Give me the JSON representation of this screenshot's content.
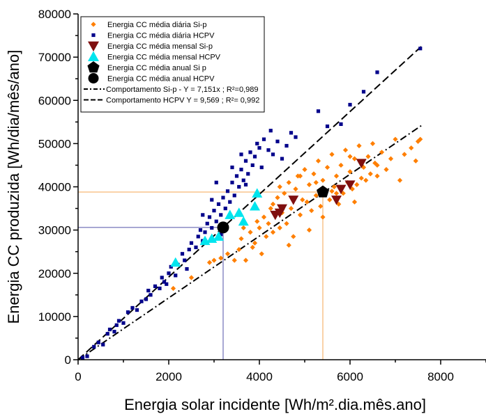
{
  "chart_data": {
    "type": "scatter",
    "xlabel": "Energia solar incidente [Wh/m².dia.mês.ano]",
    "ylabel": "Energia CC produzida [Wh/dia/mês/ano]",
    "xlim": [
      0,
      9000
    ],
    "ylim": [
      0,
      80000
    ],
    "xticks": [
      "0",
      "2000",
      "4000",
      "6000",
      "8000"
    ],
    "yticks": [
      "0",
      "10000",
      "20000",
      "30000",
      "40000",
      "50000",
      "60000",
      "70000",
      "80000"
    ],
    "legend_position": "top-left",
    "grid": false,
    "colors": {
      "sip_daily": "#ff7f00",
      "hcpv_daily": "#00008b",
      "sip_monthly": "#7f0f0f",
      "hcpv_monthly": "#00e5ee",
      "annual": "#000000",
      "ref_sip": "#f5a650",
      "ref_hcpv": "#5050a8"
    },
    "series": [
      {
        "name": "Energia CC média diária Si-p",
        "marker": "diamond",
        "points": [
          [
            2100,
            16500
          ],
          [
            2500,
            19000
          ],
          [
            2900,
            22500
          ],
          [
            3000,
            23000
          ],
          [
            3150,
            23500
          ],
          [
            3300,
            24500
          ],
          [
            3450,
            23000
          ],
          [
            3550,
            25500
          ],
          [
            3600,
            28000
          ],
          [
            3650,
            30500
          ],
          [
            3700,
            23000
          ],
          [
            3800,
            29500
          ],
          [
            3900,
            27000
          ],
          [
            3950,
            32000
          ],
          [
            4000,
            30500
          ],
          [
            4050,
            24500
          ],
          [
            4100,
            33000
          ],
          [
            4150,
            28500
          ],
          [
            4200,
            31500
          ],
          [
            4250,
            35000
          ],
          [
            4300,
            29500
          ],
          [
            4350,
            33500
          ],
          [
            4400,
            37500
          ],
          [
            4450,
            30500
          ],
          [
            4500,
            34000
          ],
          [
            4550,
            38500
          ],
          [
            4600,
            31500
          ],
          [
            4650,
            41000
          ],
          [
            4700,
            35000
          ],
          [
            4750,
            28500
          ],
          [
            4800,
            39500
          ],
          [
            4850,
            42500
          ],
          [
            4900,
            33500
          ],
          [
            4950,
            37000
          ],
          [
            5000,
            44000
          ],
          [
            5050,
            36500
          ],
          [
            5100,
            40500
          ],
          [
            5150,
            34500
          ],
          [
            5200,
            43000
          ],
          [
            5250,
            38000
          ],
          [
            5300,
            46000
          ],
          [
            5350,
            35500
          ],
          [
            5400,
            41500
          ],
          [
            5450,
            39000
          ],
          [
            5500,
            44500
          ],
          [
            5550,
            37000
          ],
          [
            5600,
            47500
          ],
          [
            5650,
            40000
          ],
          [
            5700,
            42500
          ],
          [
            5750,
            36000
          ],
          [
            5800,
            45000
          ],
          [
            5850,
            38500
          ],
          [
            5900,
            48500
          ],
          [
            5950,
            41000
          ],
          [
            6000,
            43500
          ],
          [
            6050,
            39500
          ],
          [
            6100,
            46500
          ],
          [
            6150,
            40500
          ],
          [
            6200,
            49500
          ],
          [
            6250,
            42000
          ],
          [
            6300,
            44500
          ],
          [
            6350,
            41500
          ],
          [
            6400,
            47000
          ],
          [
            6450,
            43000
          ],
          [
            6500,
            50000
          ],
          [
            6550,
            45500
          ],
          [
            6600,
            42500
          ],
          [
            6700,
            48000
          ],
          [
            6800,
            44000
          ],
          [
            6900,
            46500
          ],
          [
            7000,
            51000
          ],
          [
            7100,
            41500
          ],
          [
            7200,
            47500
          ],
          [
            7350,
            49000
          ],
          [
            7450,
            46000
          ],
          [
            7500,
            50500
          ],
          [
            7550,
            51000
          ],
          [
            4650,
            26500
          ],
          [
            5100,
            30000
          ],
          [
            5400,
            33000
          ],
          [
            5700,
            38500
          ],
          [
            6100,
            36500
          ],
          [
            4300,
            36000
          ],
          [
            4900,
            42500
          ],
          [
            5600,
            39000
          ],
          [
            6000,
            47000
          ],
          [
            5250,
            41000
          ],
          [
            3850,
            26000
          ],
          [
            4450,
            40000
          ],
          [
            6600,
            45000
          ]
        ]
      },
      {
        "name": "Energia CC média diária HCPV",
        "marker": "square",
        "points": [
          [
            100,
            500
          ],
          [
            200,
            800
          ],
          [
            350,
            3000
          ],
          [
            450,
            4000
          ],
          [
            550,
            3500
          ],
          [
            650,
            6000
          ],
          [
            700,
            7000
          ],
          [
            800,
            6500
          ],
          [
            850,
            8000
          ],
          [
            900,
            9000
          ],
          [
            1000,
            8500
          ],
          [
            1100,
            11000
          ],
          [
            1200,
            12000
          ],
          [
            1300,
            11500
          ],
          [
            1400,
            13500
          ],
          [
            1500,
            14000
          ],
          [
            1550,
            16000
          ],
          [
            1600,
            15000
          ],
          [
            1700,
            17000
          ],
          [
            1800,
            16500
          ],
          [
            1850,
            19000
          ],
          [
            1900,
            18000
          ],
          [
            2000,
            20000
          ],
          [
            2050,
            21500
          ],
          [
            2150,
            19500
          ],
          [
            2200,
            22000
          ],
          [
            2300,
            24500
          ],
          [
            2350,
            23000
          ],
          [
            2450,
            25500
          ],
          [
            2500,
            27000
          ],
          [
            2600,
            26000
          ],
          [
            2650,
            28500
          ],
          [
            2700,
            30000
          ],
          [
            2750,
            27500
          ],
          [
            2800,
            29500
          ],
          [
            2850,
            31500
          ],
          [
            2900,
            33000
          ],
          [
            2950,
            30500
          ],
          [
            3000,
            34500
          ],
          [
            3050,
            32000
          ],
          [
            3100,
            36000
          ],
          [
            3150,
            33500
          ],
          [
            3200,
            37500
          ],
          [
            3250,
            35000
          ],
          [
            3300,
            39000
          ],
          [
            3350,
            36500
          ],
          [
            3400,
            41000
          ],
          [
            3450,
            38000
          ],
          [
            3500,
            42500
          ],
          [
            3550,
            40000
          ],
          [
            3600,
            44000
          ],
          [
            3650,
            41500
          ],
          [
            3700,
            46000
          ],
          [
            3750,
            43000
          ],
          [
            3800,
            48000
          ],
          [
            3850,
            45000
          ],
          [
            3900,
            47000
          ],
          [
            3950,
            50000
          ],
          [
            4000,
            49000
          ],
          [
            4050,
            44500
          ],
          [
            4100,
            51000
          ],
          [
            4200,
            48500
          ],
          [
            4300,
            47500
          ],
          [
            4400,
            50500
          ],
          [
            4500,
            46500
          ],
          [
            4600,
            49500
          ],
          [
            4700,
            52500
          ],
          [
            4800,
            51500
          ],
          [
            5300,
            57500
          ],
          [
            5500,
            54000
          ],
          [
            5800,
            54500
          ],
          [
            6000,
            59000
          ],
          [
            6300,
            62000
          ],
          [
            6600,
            66500
          ],
          [
            7550,
            72000
          ],
          [
            2950,
            37000
          ],
          [
            3400,
            44500
          ],
          [
            3050,
            41000
          ],
          [
            2750,
            33500
          ],
          [
            3600,
            47500
          ],
          [
            4250,
            53000
          ],
          [
            3150,
            29000
          ],
          [
            2400,
            21000
          ],
          [
            1950,
            17500
          ],
          [
            3700,
            40500
          ]
        ]
      },
      {
        "name": "Energia CC média mensal Si-p",
        "marker": "triangle-down",
        "points": [
          [
            4350,
            33500
          ],
          [
            4500,
            35000
          ],
          [
            4750,
            37000
          ],
          [
            5700,
            37000
          ],
          [
            5800,
            39500
          ],
          [
            6000,
            40500
          ],
          [
            6250,
            45500
          ],
          [
            4450,
            34000
          ]
        ]
      },
      {
        "name": "Energia CC média mensal HCPV",
        "marker": "triangle-up",
        "points": [
          [
            2150,
            22500
          ],
          [
            2800,
            27500
          ],
          [
            2950,
            28000
          ],
          [
            3100,
            28500
          ],
          [
            3350,
            33500
          ],
          [
            3550,
            34000
          ],
          [
            3650,
            32000
          ],
          [
            3900,
            35500
          ],
          [
            3950,
            38500
          ]
        ]
      },
      {
        "name": "Energia CC média anual Si p",
        "marker": "pentagon",
        "points": [
          [
            5400,
            38800
          ]
        ]
      },
      {
        "name": "Energia CC média anual HCPV",
        "marker": "circle",
        "points": [
          [
            3200,
            30600
          ]
        ]
      }
    ],
    "fits": [
      {
        "name": "Comportamento Si-p - Y = 7,151x ; R²=0,989",
        "style": "dash-dot",
        "slope": 7.151,
        "x_range": [
          0,
          7600
        ]
      },
      {
        "name": "Comportamento HCPV Y = 9,569 ; R²= 0,992",
        "style": "dash",
        "slope": 9.569,
        "x_range": [
          0,
          7600
        ]
      }
    ],
    "reference_lines": [
      {
        "x": 5400,
        "y": 38800,
        "color": "orange"
      },
      {
        "x": 3200,
        "y": 30600,
        "color": "blue"
      }
    ]
  }
}
